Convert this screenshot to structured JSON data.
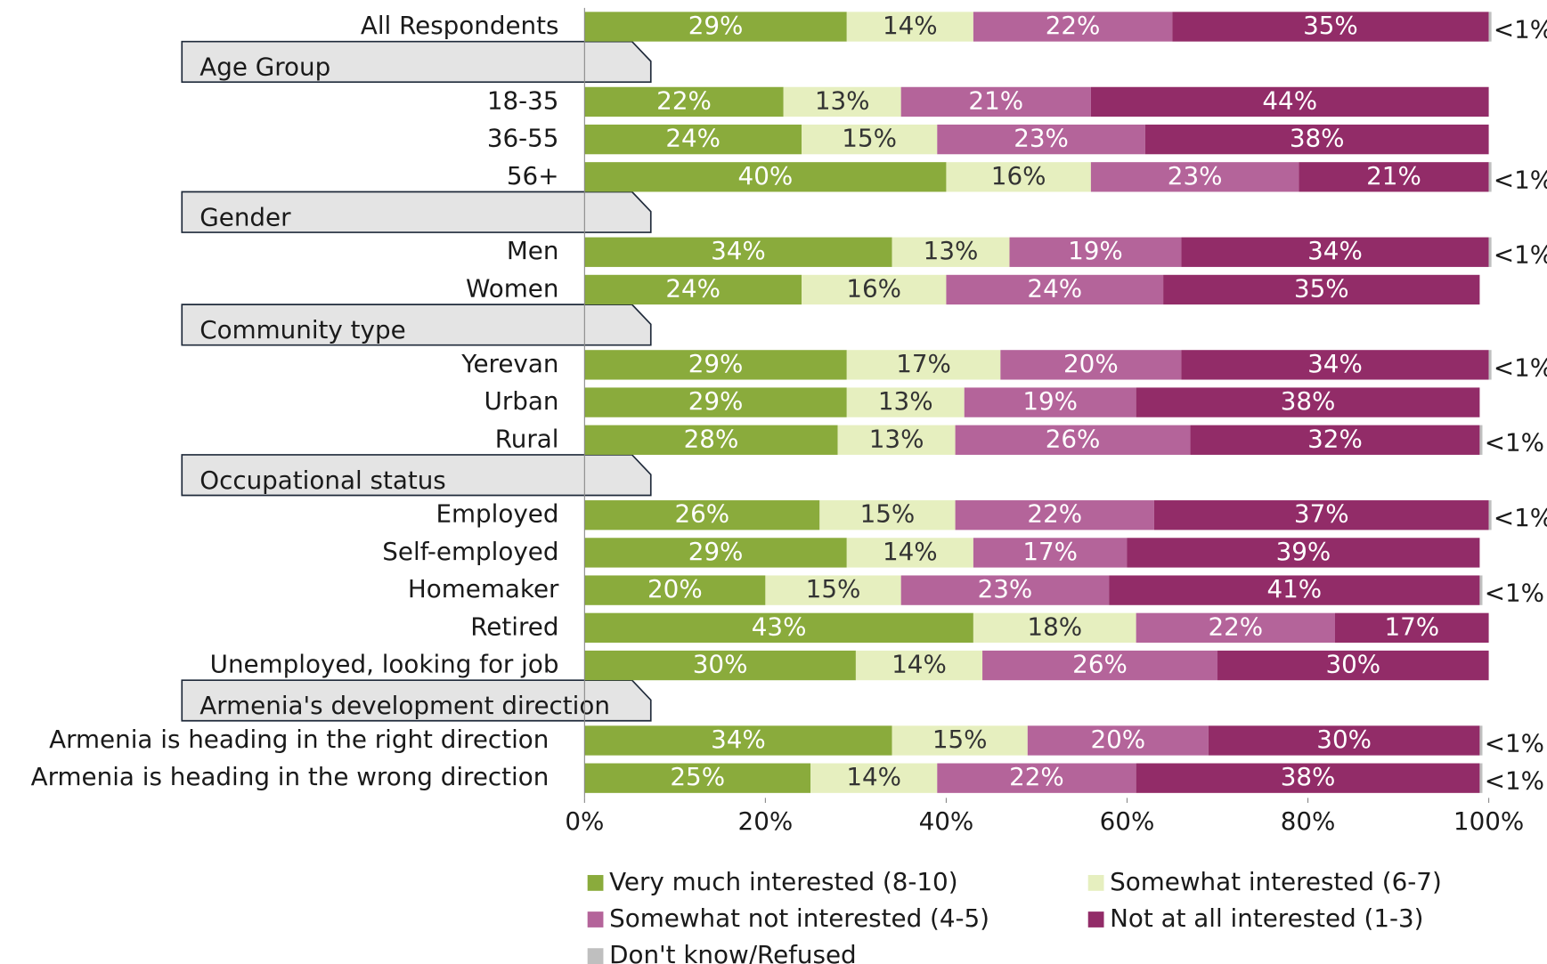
{
  "chart_data": {
    "type": "stacked-bar-horizontal",
    "categories": [
      "All Respondents",
      "18-35",
      "36-55",
      "56+",
      "Men",
      "Women",
      "Yerevan",
      "Urban",
      "Rural",
      "Employed",
      "Self-employed",
      "Homemaker",
      "Retired",
      "Unemployed, looking for job",
      "Armenia is heading in the right direction",
      "Armenia is heading in the wrong direction"
    ],
    "groups": [
      {
        "name": "Age Group",
        "first": 1
      },
      {
        "name": "Gender",
        "first": 4
      },
      {
        "name": "Community type",
        "first": 6
      },
      {
        "name": "Occupational status",
        "first": 9
      },
      {
        "name": "Armenia's development direction",
        "first": 14
      }
    ],
    "series": [
      {
        "name": "Very much interested (8-10)",
        "color": "#8aab3c",
        "label_color": "#ffffff",
        "values": [
          29,
          22,
          24,
          40,
          34,
          24,
          29,
          29,
          28,
          26,
          29,
          20,
          43,
          30,
          34,
          25
        ],
        "value_labels": [
          "29%",
          "22%",
          "24%",
          "40%",
          "34%",
          "24%",
          "29%",
          "29%",
          "28%",
          "26%",
          "29%",
          "20%",
          "43%",
          "30%",
          "34%",
          "25%"
        ]
      },
      {
        "name": "Somewhat interested (6-7)",
        "color": "#e6efbf",
        "label_color": "#333333",
        "values": [
          14,
          13,
          15,
          16,
          13,
          16,
          17,
          13,
          13,
          15,
          14,
          15,
          18,
          14,
          15,
          14
        ],
        "value_labels": [
          "14%",
          "13%",
          "15%",
          "16%",
          "13%",
          "16%",
          "17%",
          "13%",
          "13%",
          "15%",
          "14%",
          "15%",
          "18%",
          "14%",
          "15%",
          "14%"
        ]
      },
      {
        "name": "Somewhat not interested (4-5)",
        "color": "#b4649a",
        "label_color": "#ffffff",
        "values": [
          22,
          21,
          23,
          23,
          19,
          24,
          20,
          19,
          26,
          22,
          17,
          23,
          22,
          26,
          20,
          22
        ],
        "value_labels": [
          "22%",
          "21%",
          "23%",
          "23%",
          "19%",
          "24%",
          "20%",
          "19%",
          "26%",
          "22%",
          "17%",
          "23%",
          "22%",
          "26%",
          "20%",
          "22%"
        ]
      },
      {
        "name": "Not at all interested (1-3)",
        "color": "#922c68",
        "label_color": "#ffffff",
        "values": [
          35,
          44,
          38,
          21,
          34,
          35,
          34,
          38,
          32,
          37,
          39,
          41,
          17,
          30,
          30,
          38
        ],
        "value_labels": [
          "35%",
          "44%",
          "38%",
          "21%",
          "34%",
          "35%",
          "34%",
          "38%",
          "32%",
          "37%",
          "39%",
          "41%",
          "17%",
          "30%",
          "30%",
          "38%"
        ]
      },
      {
        "name": "Don't know/Refused",
        "color": "#bfbfbf",
        "label_color": "#222222",
        "outside": true,
        "values": [
          0.3,
          0,
          0,
          0.3,
          0.3,
          0,
          0.3,
          0,
          0.3,
          0.3,
          0,
          0.3,
          0,
          0,
          0.3,
          0.3
        ],
        "value_labels": [
          "<1%",
          null,
          null,
          "<1%",
          "<1%",
          null,
          "<1%",
          null,
          "<1%",
          "<1%",
          null,
          "<1%",
          null,
          null,
          "<1%",
          "<1%"
        ]
      }
    ],
    "xlim": [
      0,
      100
    ],
    "xticks": [
      {
        "value": 0,
        "label": "0%"
      },
      {
        "value": 20,
        "label": "20%"
      },
      {
        "value": 40,
        "label": "40%"
      },
      {
        "value": 60,
        "label": "60%"
      },
      {
        "value": 80,
        "label": "80%"
      },
      {
        "value": 100,
        "label": "100%"
      }
    ],
    "legend": "bottom"
  }
}
